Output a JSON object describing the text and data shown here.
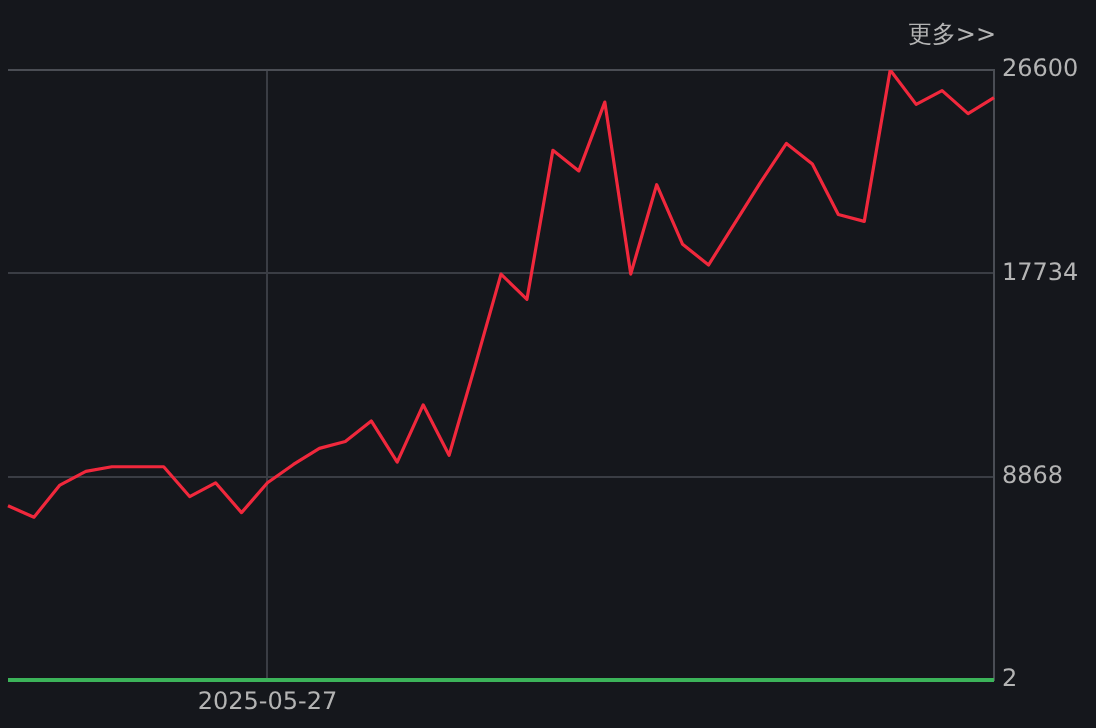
{
  "chart_data": {
    "type": "line",
    "categories": [
      null,
      null,
      null,
      null,
      null,
      null,
      null,
      null,
      null,
      null,
      "2025-05-27",
      null,
      null,
      null,
      null,
      null,
      null,
      null,
      null,
      null,
      null,
      null,
      null,
      null,
      null,
      null,
      null,
      null,
      null,
      null,
      null,
      null,
      null,
      null,
      null,
      null,
      null,
      null,
      null
    ],
    "series": [
      {
        "color": "#f0283c",
        "values": [
          7600,
          7100,
          8500,
          9100,
          9300,
          9300,
          9300,
          8000,
          8600,
          7300,
          8600,
          9400,
          10100,
          10400,
          11300,
          9500,
          12000,
          9800,
          13700,
          17700,
          16600,
          23100,
          22200,
          25200,
          17700,
          21600,
          19000,
          18100,
          19900,
          21700,
          23400,
          22500,
          20300,
          20000,
          26600,
          25100,
          25700,
          24700,
          25400
        ]
      }
    ],
    "ylim": [
      2,
      26600
    ],
    "yticks": [
      2,
      8868,
      17734,
      26600
    ],
    "grid": true,
    "legend": false,
    "marker": "none",
    "line_style": "solid",
    "ref_lines": [
      {
        "axis": "y",
        "value": 2,
        "color": "#3cb45a"
      }
    ],
    "annotations": [
      "更多>>"
    ]
  }
}
